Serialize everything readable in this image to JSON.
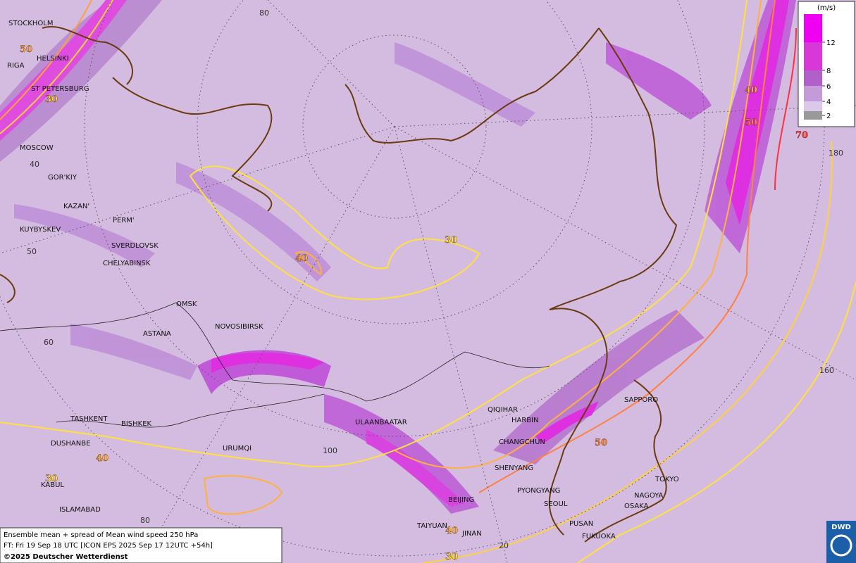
{
  "legend": {
    "unit": "(m/s)",
    "ticks": [
      12,
      8,
      6,
      4,
      2
    ]
  },
  "cities": [
    "STOCKHOLM",
    "HELSINKI",
    "RIGA",
    "ST PETERSBURG",
    "MOSCOW",
    "GOR'KIY",
    "KAZAN'",
    "PERM'",
    "KUYBYSKEV",
    "SVERDLOVSK",
    "CHELYABINSK",
    "OMSK",
    "NOVOSIBIRSK",
    "ASTANA",
    "TASHKENT",
    "BISHKEK",
    "DUSHANBE",
    "URUMQI",
    "KABUL",
    "ISLAMABAD",
    "ULAANBAATAR",
    "QIQIHAR",
    "HARBIN",
    "CHANGCHUN",
    "SHENYANG",
    "PYONGYANG",
    "SEOUL",
    "BEIJING",
    "TAIYUAN",
    "JINAN",
    "PUSAN",
    "FUKUOKA",
    "OSAKA",
    "NAGOYA",
    "TOKYO",
    "SAPPORO"
  ],
  "grid_labels": [
    80,
    40,
    50,
    60,
    100,
    80,
    20,
    180,
    160
  ],
  "contour_labels": [
    50,
    30,
    40,
    30,
    40,
    50,
    70,
    50,
    40,
    30,
    40,
    30
  ],
  "footer": {
    "title": "Ensemble mean + spread of Mean wind speed 250 hPa",
    "run": "FT: Fri 19 Sep 18 UTC [ICON EPS 2025 Sep 17 12UTC +54h]",
    "copyright": "©2025 Deutscher Wetterdienst"
  },
  "logo": "DWD"
}
